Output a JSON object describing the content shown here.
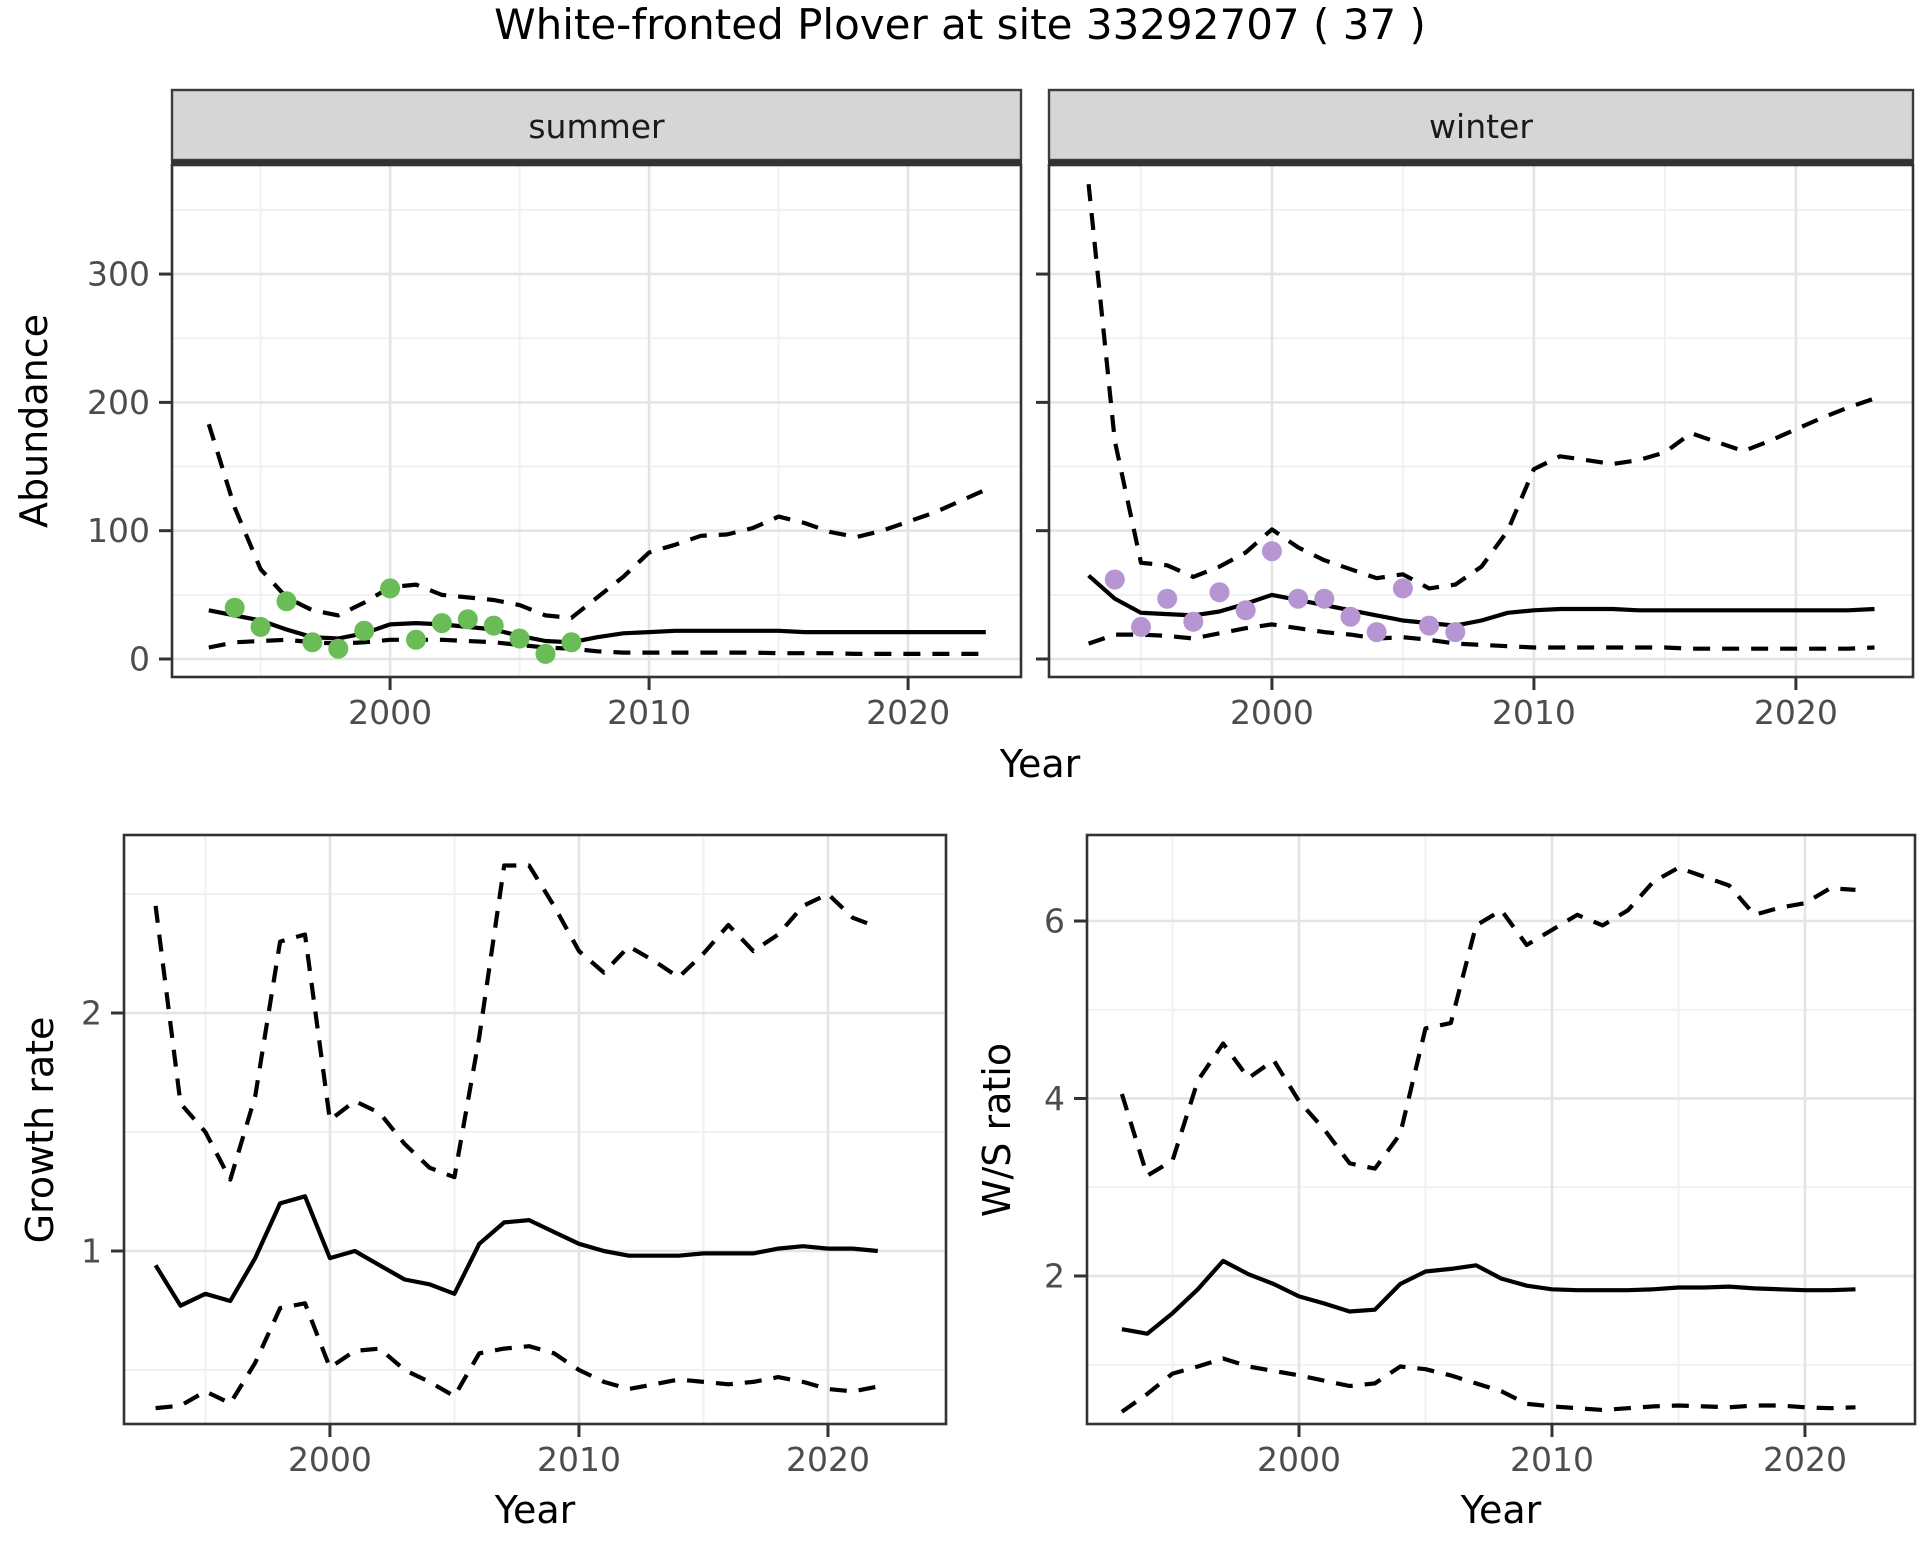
{
  "title": "White-fronted Plover at site 33292707 ( 37 )",
  "top_row": {
    "ylabel": "Abundance",
    "xlabel": "Year"
  },
  "theme": {
    "line_color": "#000000",
    "axis_text_color": "#4d4d4d",
    "panel_border_color": "#333333",
    "strip_bg": "#d6d6d6",
    "strip_border": "#3c3c3c",
    "grid_major": "#e4e4e4",
    "grid_minor": "#f1f1f1",
    "summer_point_color": "#6abd56",
    "winter_point_color": "#b795d2"
  },
  "chart_data": [
    {
      "id": "abundance_summer",
      "type": "line",
      "facet_label": "summer",
      "ylabel": "Abundance",
      "xlabel": "Year",
      "xlim": [
        1991.58,
        2024.36
      ],
      "ylim": [
        -14.02,
        385.0
      ],
      "x_major": [
        2000,
        2010,
        2020
      ],
      "x_minor": [
        1995,
        2005,
        2015
      ],
      "y_major": [
        0,
        100,
        200,
        300
      ],
      "y_minor": [
        50,
        150,
        250,
        350
      ],
      "show_y_labels": true,
      "years": [
        1993,
        1994,
        1995,
        1996,
        1997,
        1998,
        1999,
        2000,
        2001,
        2002,
        2003,
        2004,
        2005,
        2006,
        2007,
        2008,
        2009,
        2010,
        2011,
        2012,
        2013,
        2014,
        2015,
        2016,
        2017,
        2018,
        2019,
        2020,
        2021,
        2022,
        2023
      ],
      "median": [
        38,
        34,
        30,
        23,
        17,
        16,
        20,
        27,
        28,
        27,
        25,
        23,
        18,
        14,
        13,
        17,
        20,
        21,
        22,
        22,
        22,
        22,
        22,
        21,
        21,
        21,
        21,
        21,
        21,
        21,
        21
      ],
      "upper": [
        183,
        118,
        70,
        48,
        38,
        34,
        44,
        56,
        58,
        50,
        48,
        46,
        42,
        34,
        32,
        48,
        64,
        83,
        89,
        96,
        97,
        102,
        111,
        106,
        99,
        95,
        100,
        107,
        114,
        123,
        132
      ],
      "lower": [
        9,
        13,
        14,
        15,
        13,
        12,
        13,
        15,
        15,
        15,
        14,
        13,
        11,
        9,
        8,
        6,
        5,
        5,
        5,
        5,
        5,
        5,
        4.5,
        4.5,
        4.5,
        4,
        4,
        4,
        4,
        4,
        4
      ],
      "observed": {
        "type": "scatter",
        "color": "#6abd56",
        "years": [
          1994,
          1995,
          1996,
          1997,
          1998,
          1999,
          2000,
          2001,
          2002,
          2003,
          2004,
          2005,
          2006,
          2007
        ],
        "values": [
          40,
          25,
          45,
          13,
          8,
          22,
          55,
          15,
          28,
          31,
          26,
          16,
          4,
          13
        ]
      }
    },
    {
      "id": "abundance_winter",
      "type": "line",
      "facet_label": "winter",
      "ylabel": "Abundance",
      "xlabel": "Year",
      "xlim": [
        1991.49,
        2024.47
      ],
      "ylim": [
        -14.02,
        385.0
      ],
      "x_major": [
        2000,
        2010,
        2020
      ],
      "x_minor": [
        1995,
        2005,
        2015
      ],
      "y_major": [
        0,
        100,
        200,
        300
      ],
      "y_minor": [
        50,
        150,
        250,
        350
      ],
      "show_y_labels": false,
      "years": [
        1993,
        1994,
        1995,
        1996,
        1997,
        1998,
        1999,
        2000,
        2001,
        2002,
        2003,
        2004,
        2005,
        2006,
        2007,
        2008,
        2009,
        2010,
        2011,
        2012,
        2013,
        2014,
        2015,
        2016,
        2017,
        2018,
        2019,
        2020,
        2021,
        2022,
        2023
      ],
      "median": [
        65,
        47,
        36,
        35,
        34,
        37,
        43,
        50,
        46,
        42,
        38,
        34,
        30,
        28,
        26,
        30,
        36,
        38,
        39,
        39,
        39,
        38,
        38,
        38,
        38,
        38,
        38,
        38,
        38,
        38,
        39
      ],
      "upper": [
        370,
        170,
        75,
        73,
        64,
        72,
        83,
        101,
        87,
        77,
        70,
        63,
        66,
        55,
        58,
        72,
        100,
        148,
        158,
        155,
        152,
        155,
        161,
        176,
        169,
        162,
        170,
        179,
        188,
        196,
        203
      ],
      "lower": [
        12,
        19,
        19,
        18,
        16,
        20,
        24,
        27,
        24,
        21,
        19,
        16,
        17,
        15,
        12,
        11,
        10,
        9,
        9,
        9,
        9,
        9,
        9,
        8,
        8,
        8,
        8,
        8,
        8,
        8,
        9
      ],
      "observed": {
        "type": "scatter",
        "color": "#b795d2",
        "years": [
          1994,
          1995,
          1996,
          1997,
          1998,
          1999,
          2000,
          2001,
          2002,
          2003,
          2004,
          2005,
          2006,
          2007
        ],
        "values": [
          62,
          25,
          47,
          29,
          52,
          38,
          84,
          47,
          47,
          33,
          21,
          55,
          26,
          21
        ]
      }
    },
    {
      "id": "growth_rate",
      "type": "line",
      "facet_label": "",
      "ylabel": "Growth rate",
      "xlabel": "Year",
      "xlim": [
        1991.73,
        2024.74
      ],
      "ylim": [
        0.273,
        2.748
      ],
      "x_major": [
        2000,
        2010,
        2020
      ],
      "x_minor": [
        1995,
        2005,
        2015
      ],
      "y_major": [
        1,
        2
      ],
      "y_minor": [
        0.5,
        1.5,
        2.5
      ],
      "show_y_labels": true,
      "years": [
        1993,
        1994,
        1995,
        1996,
        1997,
        1998,
        1999,
        2000,
        2001,
        2002,
        2003,
        2004,
        2005,
        2006,
        2007,
        2008,
        2009,
        2010,
        2011,
        2012,
        2013,
        2014,
        2015,
        2016,
        2017,
        2018,
        2019,
        2020,
        2021,
        2022
      ],
      "median": [
        0.94,
        0.77,
        0.82,
        0.79,
        0.97,
        1.2,
        1.23,
        0.97,
        1.0,
        0.94,
        0.88,
        0.86,
        0.82,
        1.03,
        1.12,
        1.13,
        1.08,
        1.03,
        1.0,
        0.98,
        0.98,
        0.98,
        0.99,
        0.99,
        0.99,
        1.01,
        1.02,
        1.01,
        1.01,
        1.0
      ],
      "upper": [
        2.45,
        1.62,
        1.5,
        1.3,
        1.65,
        2.3,
        2.33,
        1.55,
        1.63,
        1.58,
        1.45,
        1.35,
        1.31,
        1.9,
        2.62,
        2.62,
        2.45,
        2.26,
        2.17,
        2.28,
        2.22,
        2.15,
        2.25,
        2.37,
        2.26,
        2.33,
        2.45,
        2.5,
        2.4,
        2.36
      ],
      "lower": [
        0.34,
        0.35,
        0.41,
        0.36,
        0.53,
        0.76,
        0.78,
        0.51,
        0.58,
        0.59,
        0.5,
        0.45,
        0.39,
        0.57,
        0.59,
        0.6,
        0.57,
        0.5,
        0.45,
        0.42,
        0.44,
        0.46,
        0.45,
        0.44,
        0.45,
        0.47,
        0.45,
        0.42,
        0.41,
        0.43
      ]
    },
    {
      "id": "ws_ratio",
      "type": "line",
      "facet_label": "",
      "ylabel": "W/S ratio",
      "xlabel": "Year",
      "xlim": [
        1991.62,
        2024.35
      ],
      "ylim": [
        0.332,
        6.969
      ],
      "x_major": [
        2000,
        2010,
        2020
      ],
      "x_minor": [
        1995,
        2005,
        2015
      ],
      "y_major": [
        2,
        4,
        6
      ],
      "y_minor": [
        1,
        3,
        5
      ],
      "show_y_labels": true,
      "years": [
        1993,
        1994,
        1995,
        1996,
        1997,
        1998,
        1999,
        2000,
        2001,
        2002,
        2003,
        2004,
        2005,
        2006,
        2007,
        2008,
        2009,
        2010,
        2011,
        2012,
        2013,
        2014,
        2015,
        2016,
        2017,
        2018,
        2019,
        2020,
        2021,
        2022
      ],
      "median": [
        1.4,
        1.35,
        1.58,
        1.85,
        2.17,
        2.02,
        1.91,
        1.77,
        1.69,
        1.6,
        1.62,
        1.91,
        2.05,
        2.08,
        2.12,
        1.97,
        1.89,
        1.85,
        1.84,
        1.84,
        1.84,
        1.85,
        1.87,
        1.87,
        1.88,
        1.86,
        1.85,
        1.84,
        1.84,
        1.85
      ],
      "upper": [
        4.05,
        3.13,
        3.3,
        4.2,
        4.62,
        4.23,
        4.43,
        3.97,
        3.65,
        3.27,
        3.21,
        3.6,
        4.79,
        4.85,
        5.95,
        6.12,
        5.73,
        5.9,
        6.07,
        5.95,
        6.12,
        6.44,
        6.6,
        6.5,
        6.4,
        6.07,
        6.15,
        6.2,
        6.37,
        6.35
      ],
      "lower": [
        0.47,
        0.67,
        0.9,
        0.98,
        1.07,
        0.98,
        0.93,
        0.88,
        0.82,
        0.76,
        0.79,
        0.98,
        0.95,
        0.88,
        0.79,
        0.7,
        0.56,
        0.53,
        0.51,
        0.49,
        0.51,
        0.53,
        0.54,
        0.53,
        0.52,
        0.54,
        0.54,
        0.52,
        0.51,
        0.52
      ]
    }
  ]
}
